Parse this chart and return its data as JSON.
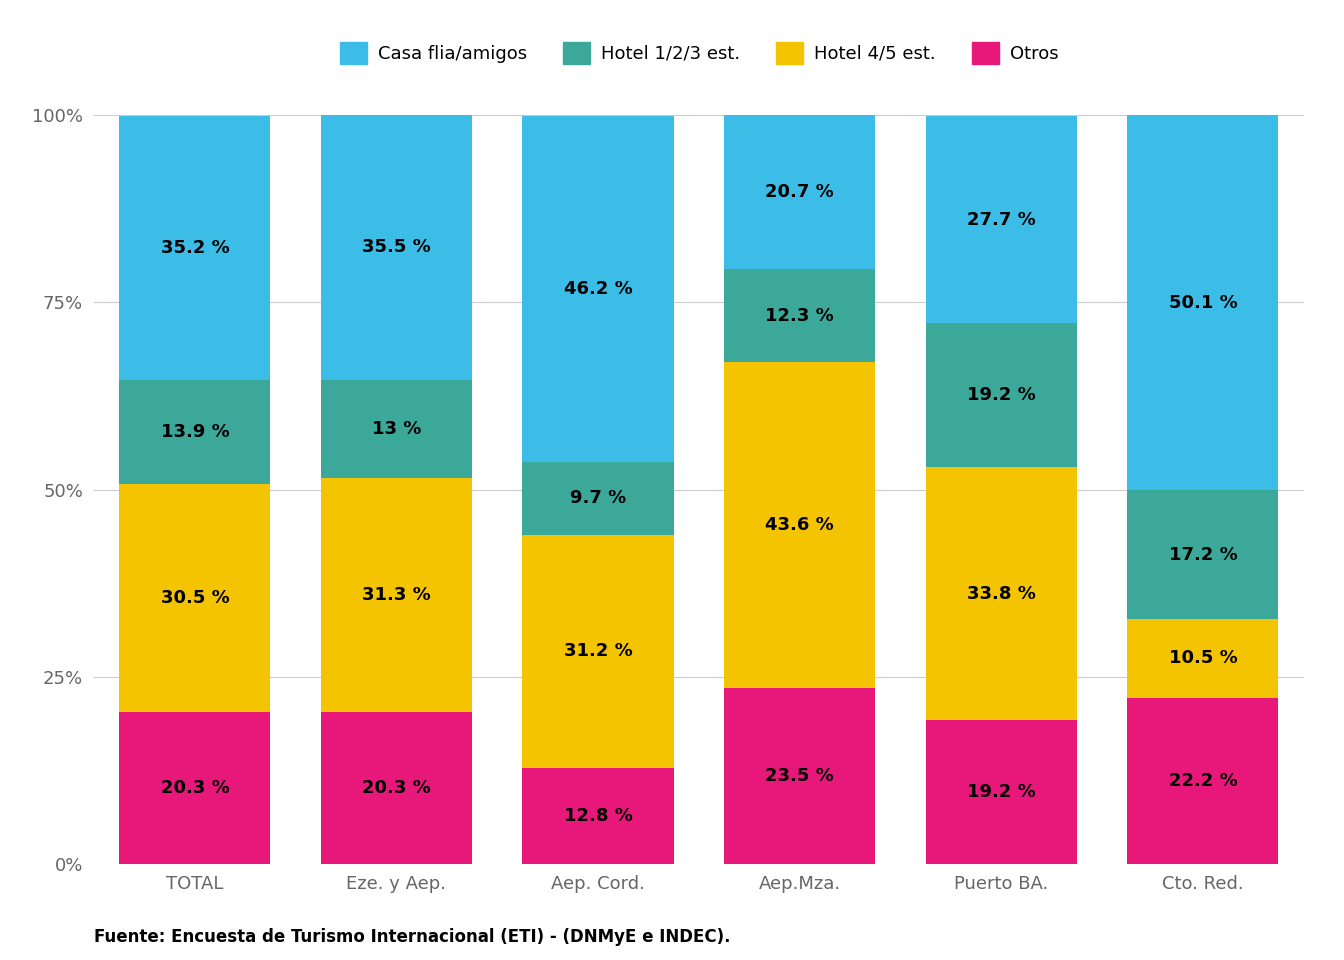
{
  "categories": [
    "TOTAL",
    "Eze. y Aep.",
    "Aep. Cord.",
    "Aep.Mza.",
    "Puerto BA.",
    "Cto. Red."
  ],
  "series": {
    "Otros": [
      20.3,
      20.3,
      12.8,
      23.5,
      19.2,
      22.2
    ],
    "Hotel 4/5 est.": [
      30.5,
      31.3,
      31.2,
      43.6,
      33.8,
      10.5
    ],
    "Hotel 1/2/3 est.": [
      13.9,
      13.0,
      9.7,
      12.3,
      19.2,
      17.2
    ],
    "Casa flia/amigos": [
      35.2,
      35.5,
      46.2,
      20.7,
      27.7,
      50.1
    ]
  },
  "labels": {
    "Otros": [
      "20.3 %",
      "20.3 %",
      "12.8 %",
      "23.5 %",
      "19.2 %",
      "22.2 %"
    ],
    "Hotel 4/5 est.": [
      "30.5 %",
      "31.3 %",
      "31.2 %",
      "43.6 %",
      "33.8 %",
      "10.5 %"
    ],
    "Hotel 1/2/3 est.": [
      "13.9 %",
      "13 %",
      "9.7 %",
      "12.3 %",
      "19.2 %",
      "17.2 %"
    ],
    "Casa flia/amigos": [
      "35.2 %",
      "35.5 %",
      "46.2 %",
      "20.7 %",
      "27.7 %",
      "50.1 %"
    ]
  },
  "colors": {
    "Otros": "#E8187A",
    "Hotel 4/5 est.": "#F5C400",
    "Hotel 1/2/3 est.": "#3CA89A",
    "Casa flia/amigos": "#3BBDE8"
  },
  "legend_order": [
    "Casa flia/amigos",
    "Hotel 1/2/3 est.",
    "Hotel 4/5 est.",
    "Otros"
  ],
  "yticks": [
    0,
    25,
    50,
    75,
    100
  ],
  "ytick_labels": [
    "0%",
    "25%",
    "50%",
    "75%",
    "100%"
  ],
  "source_text": "Fuente: Encuesta de Turismo Internacional (ETI) - (DNMyE e INDEC).",
  "background_color": "#FFFFFF",
  "bar_width": 0.75,
  "text_fontsize": 13,
  "label_fontsize": 13,
  "legend_fontsize": 13,
  "source_fontsize": 12
}
